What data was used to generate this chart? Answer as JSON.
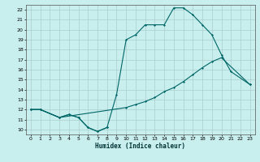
{
  "xlabel": "Humidex (Indice chaleur)",
  "bg_color": "#c8eeee",
  "grid_color": "#aacece",
  "line_color": "#006666",
  "xlim": [
    -0.5,
    23.5
  ],
  "ylim": [
    9.5,
    22.5
  ],
  "xticks": [
    0,
    1,
    2,
    3,
    4,
    5,
    6,
    7,
    8,
    9,
    10,
    11,
    12,
    13,
    14,
    15,
    16,
    17,
    18,
    19,
    20,
    21,
    22,
    23
  ],
  "yticks": [
    10,
    11,
    12,
    13,
    14,
    15,
    16,
    17,
    18,
    19,
    20,
    21,
    22
  ],
  "line_main_x": [
    0,
    1,
    3,
    4,
    5,
    6,
    7,
    8,
    9,
    10,
    11,
    12,
    13,
    14,
    15,
    16,
    17,
    18,
    19,
    20,
    21,
    23
  ],
  "line_main_y": [
    12,
    12,
    11.2,
    11.5,
    11.2,
    10.2,
    9.8,
    10.2,
    13.5,
    19.0,
    19.5,
    20.5,
    20.5,
    20.5,
    22.2,
    22.2,
    21.5,
    20.5,
    19.5,
    17.5,
    15.8,
    14.5
  ],
  "line_diag_x": [
    0,
    1,
    3,
    10,
    11,
    12,
    13,
    14,
    15,
    16,
    17,
    18,
    19,
    20,
    23
  ],
  "line_diag_y": [
    12,
    12,
    11.2,
    12.2,
    12.5,
    12.8,
    13.2,
    13.8,
    14.2,
    14.8,
    15.5,
    16.2,
    16.8,
    17.2,
    14.5
  ],
  "line_bottom_x": [
    0,
    1,
    3,
    4,
    5,
    6,
    7,
    8
  ],
  "line_bottom_y": [
    12,
    12,
    11.2,
    11.5,
    11.2,
    10.2,
    9.8,
    10.2
  ]
}
